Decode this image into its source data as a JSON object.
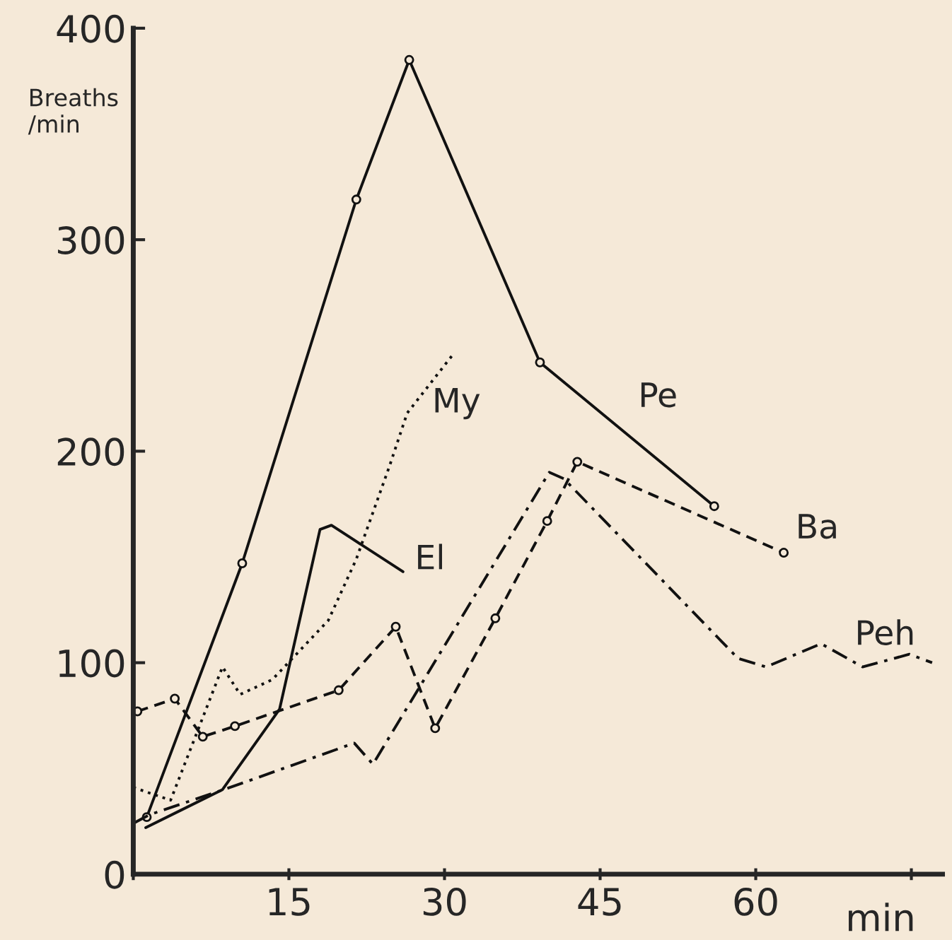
{
  "chart_data": {
    "type": "line",
    "xlabel": "min",
    "ylabel": "Breaths\n/min",
    "xlim": [
      0,
      78
    ],
    "ylim": [
      0,
      400
    ],
    "xticks": [
      {
        "value": 0,
        "label": null
      },
      15,
      30,
      45,
      60,
      {
        "value": 75,
        "label": null
      }
    ],
    "yticks": [
      0,
      100,
      200,
      300,
      400
    ],
    "grid": false,
    "legend": false,
    "series": [
      {
        "name": "Pe",
        "color": "#111111",
        "line_style": "solid",
        "marker": "circle",
        "x": [
          1.3,
          10.5,
          21.5,
          26.6,
          39.2,
          56.0
        ],
        "values": [
          27,
          147,
          319,
          385,
          242,
          174
        ]
      },
      {
        "name": "El",
        "color": "#111111",
        "line_style": "solid",
        "marker": "none",
        "x": [
          1.2,
          8.6,
          14.1,
          18.0,
          19.1,
          26.0
        ],
        "values": [
          22,
          40,
          78,
          163,
          165,
          143
        ]
      },
      {
        "name": "My",
        "color": "#111111",
        "line_style": "dotted",
        "marker": "none",
        "x": [
          0,
          3.6,
          8.6,
          10.3,
          13.4,
          18.8,
          21.5,
          24.7,
          26.4,
          30.7
        ],
        "values": [
          41,
          35,
          98,
          85,
          92,
          120,
          149,
          193,
          218,
          245
        ]
      },
      {
        "name": "Ba",
        "color": "#111111",
        "line_style": "dashed",
        "marker": "circle",
        "x": [
          0.4,
          4.0,
          6.7,
          9.8,
          19.8,
          25.3,
          29.1,
          34.9,
          39.9,
          42.8,
          62.7
        ],
        "values": [
          77,
          83,
          65,
          70,
          87,
          117,
          69,
          121,
          167,
          195,
          152
        ]
      },
      {
        "name": "Peh",
        "color": "#111111",
        "line_style": "dashdot",
        "marker": "none",
        "x": [
          0,
          1.5,
          9.9,
          21.3,
          23.1,
          40.1,
          41.5,
          58.3,
          61.0,
          66.3,
          70.3,
          74.8,
          77.0
        ],
        "values": [
          24,
          28,
          42,
          62,
          52,
          190,
          187,
          102,
          98,
          109,
          98,
          104,
          100
        ]
      }
    ]
  }
}
